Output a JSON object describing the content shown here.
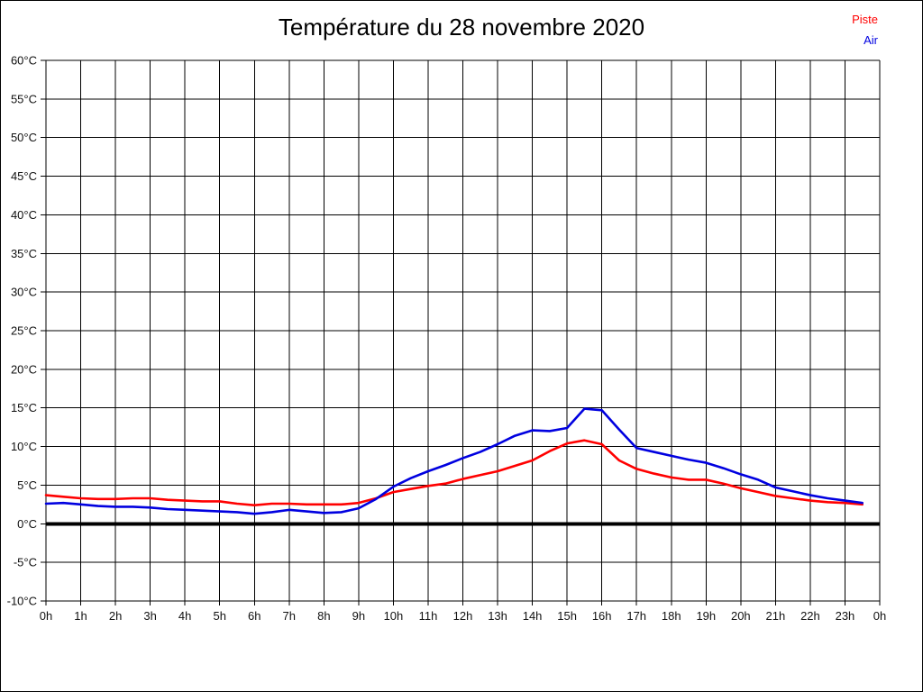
{
  "page": {
    "background": "#ffffff",
    "border_color": "#000000",
    "text_color": "#111111"
  },
  "chart_data": {
    "type": "line",
    "title": "Température du 28 novembre 2020",
    "xlabel": "",
    "ylabel": "",
    "xlim": [
      0,
      24
    ],
    "ylim": [
      -10,
      60
    ],
    "grid": true,
    "legend_position": "top-right",
    "zero_line": {
      "value": 0,
      "color": "#000000",
      "width": 4
    },
    "xtick_values": [
      0,
      1,
      2,
      3,
      4,
      5,
      6,
      7,
      8,
      9,
      10,
      11,
      12,
      13,
      14,
      15,
      16,
      17,
      18,
      19,
      20,
      21,
      22,
      23,
      24
    ],
    "xtick_labels": [
      "0h",
      "1h",
      "2h",
      "3h",
      "4h",
      "5h",
      "6h",
      "7h",
      "8h",
      "9h",
      "10h",
      "11h",
      "12h",
      "13h",
      "14h",
      "15h",
      "16h",
      "17h",
      "18h",
      "19h",
      "20h",
      "21h",
      "22h",
      "23h",
      "0h"
    ],
    "ytick_values": [
      60,
      55,
      50,
      45,
      40,
      35,
      30,
      25,
      20,
      15,
      10,
      5,
      0,
      -5,
      -10
    ],
    "ytick_labels": [
      "60°C",
      "55°C",
      "50°C",
      "45°C",
      "40°C",
      "35°C",
      "30°C",
      "25°C",
      "20°C",
      "15°C",
      "10°C",
      "5°C",
      "0°C",
      "-5°C",
      "-10°C"
    ],
    "x": [
      0,
      0.5,
      1,
      1.5,
      2,
      2.5,
      3,
      3.5,
      4,
      4.5,
      5,
      5.5,
      6,
      6.5,
      7,
      7.5,
      8,
      8.5,
      9,
      9.5,
      10,
      10.5,
      11,
      11.5,
      12,
      12.5,
      13,
      13.5,
      14,
      14.5,
      15,
      15.5,
      16,
      16.5,
      17,
      17.5,
      18,
      18.5,
      19,
      19.5,
      20,
      20.5,
      21,
      21.5,
      22,
      22.5,
      23,
      23.5
    ],
    "series": [
      {
        "name": "Piste",
        "color": "#ff0000",
        "values": [
          3.7,
          3.5,
          3.3,
          3.2,
          3.2,
          3.3,
          3.3,
          3.1,
          3.0,
          2.9,
          2.9,
          2.6,
          2.4,
          2.6,
          2.6,
          2.5,
          2.5,
          2.5,
          2.7,
          3.3,
          4.1,
          4.5,
          4.9,
          5.2,
          5.8,
          6.3,
          6.8,
          7.5,
          8.2,
          9.4,
          10.4,
          10.8,
          10.3,
          8.2,
          7.1,
          6.5,
          6.0,
          5.7,
          5.7,
          5.2,
          4.6,
          4.1,
          3.6,
          3.3,
          3.0,
          2.8,
          2.7,
          2.5
        ]
      },
      {
        "name": "Air",
        "color": "#0000e0",
        "values": [
          2.6,
          2.7,
          2.5,
          2.3,
          2.2,
          2.2,
          2.1,
          1.9,
          1.8,
          1.7,
          1.6,
          1.5,
          1.3,
          1.5,
          1.8,
          1.6,
          1.4,
          1.5,
          2.0,
          3.2,
          4.8,
          5.9,
          6.8,
          7.6,
          8.5,
          9.3,
          10.3,
          11.4,
          12.1,
          12.0,
          12.4,
          14.9,
          14.7,
          12.2,
          9.8,
          9.3,
          8.8,
          8.3,
          7.9,
          7.2,
          6.4,
          5.7,
          4.7,
          4.2,
          3.7,
          3.3,
          3.0,
          2.7
        ]
      }
    ]
  }
}
